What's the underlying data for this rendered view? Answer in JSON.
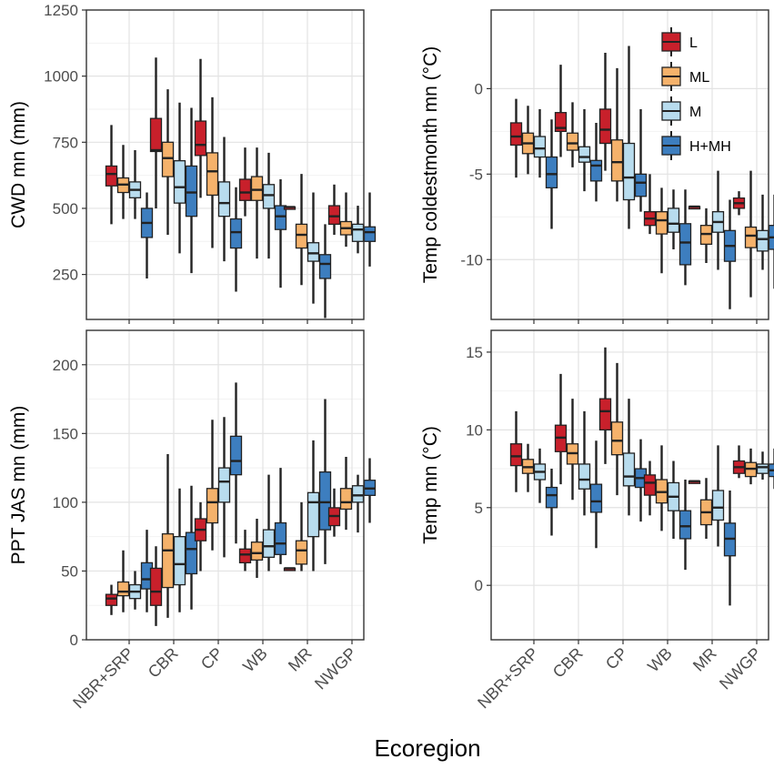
{
  "chart_data": {
    "type": "boxplot",
    "xlabel": "Ecoregion",
    "categories": [
      "NBR+SRP",
      "CBR",
      "CP",
      "WB",
      "MR",
      "NWGP"
    ],
    "groups": [
      "L",
      "ML",
      "M",
      "H+MH"
    ],
    "legend": [
      {
        "label": "L",
        "color": "#c8202b"
      },
      {
        "label": "ML",
        "color": "#f5b26b"
      },
      {
        "label": "M",
        "color": "#b8dcee"
      },
      {
        "label": "H+MH",
        "color": "#3d7ebf"
      }
    ],
    "panels": [
      {
        "ylabel": "CWD  mn (mm)",
        "ylim": [
          80,
          1250
        ],
        "yticks": [
          250,
          500,
          750,
          1000,
          1250
        ],
        "ytick_labels": [
          "250",
          "500",
          "750",
          "1000",
          "1250"
        ],
        "boxes": [
          [
            [
              440,
              585,
              630,
              660,
              815
            ],
            [
              460,
              560,
              590,
              615,
              740
            ],
            [
              460,
              540,
              570,
              600,
              720
            ],
            [
              235,
              390,
              445,
              500,
              560
            ]
          ],
          [
            [
              500,
              715,
              720,
              840,
              1070
            ],
            [
              400,
              620,
              690,
              750,
              950
            ],
            [
              330,
              520,
              580,
              680,
              900
            ],
            [
              255,
              470,
              560,
              660,
              880
            ]
          ],
          [
            [
              540,
              700,
              740,
              830,
              1065
            ],
            [
              350,
              550,
              640,
              710,
              920
            ],
            [
              300,
              470,
              520,
              600,
              770
            ],
            [
              185,
              350,
              410,
              460,
              580
            ]
          ],
          [
            [
              470,
              530,
              560,
              610,
              730
            ],
            [
              310,
              530,
              570,
              620,
              730
            ],
            [
              310,
              500,
              550,
              590,
              710
            ],
            [
              200,
              420,
              470,
              510,
              610
            ]
          ],
          [
            [
              505,
              505,
              505,
              505,
              505
            ],
            [
              210,
              350,
              400,
              440,
              630
            ],
            [
              140,
              300,
              330,
              370,
              560
            ],
            [
              85,
              235,
              290,
              325,
              440
            ]
          ],
          [
            [
              400,
              440,
              470,
              510,
              590
            ],
            [
              355,
              400,
              425,
              450,
              560
            ],
            [
              330,
              375,
              420,
              440,
              510
            ],
            [
              280,
              375,
              410,
              430,
              560
            ]
          ]
        ]
      },
      {
        "ylabel": "Temp  coldestmonth  mn (°C)",
        "ylim": [
          -13.5,
          4.6
        ],
        "yticks": [
          -10,
          -5,
          0
        ],
        "ytick_labels": [
          "-10",
          "-5",
          "0"
        ],
        "boxes": [
          [
            [
              -5.2,
              -3.3,
              -2.8,
              -2.0,
              -0.6
            ],
            [
              -5.0,
              -3.8,
              -3.2,
              -2.6,
              -1.0
            ],
            [
              -5.2,
              -4.0,
              -3.5,
              -2.8,
              -1.2
            ],
            [
              -8.2,
              -5.8,
              -5.0,
              -4.0,
              -1.8
            ]
          ],
          [
            [
              -4.0,
              -2.5,
              -2.3,
              -1.4,
              1.4
            ],
            [
              -4.6,
              -3.6,
              -3.2,
              -2.6,
              -0.8
            ],
            [
              -6.0,
              -4.3,
              -4.0,
              -3.4,
              -1.2
            ],
            [
              -6.6,
              -5.4,
              -4.5,
              -4.2,
              -2.0
            ]
          ],
          [
            [
              -4.8,
              -3.2,
              -2.4,
              -1.2,
              2.1
            ],
            [
              -6.6,
              -5.4,
              -4.3,
              -3.0,
              1.2
            ],
            [
              -8.2,
              -6.5,
              -5.2,
              -3.2,
              2.5
            ],
            [
              -7.2,
              -6.3,
              -5.5,
              -5.0,
              -1.2
            ]
          ],
          [
            [
              -8.5,
              -8.0,
              -7.6,
              -7.2,
              -5.0
            ],
            [
              -10.8,
              -8.5,
              -7.7,
              -7.2,
              -5.8
            ],
            [
              -9.4,
              -8.4,
              -7.9,
              -7.0,
              -5.9
            ],
            [
              -11.5,
              -10.3,
              -9.0,
              -7.9,
              -5.9
            ]
          ],
          [
            [
              -6.9,
              -6.9,
              -6.9,
              -6.9,
              -6.9
            ],
            [
              -10.2,
              -9.1,
              -8.5,
              -8.0,
              -7.0
            ],
            [
              -10.6,
              -8.4,
              -7.8,
              -7.2,
              -4.8
            ],
            [
              -12.9,
              -10.1,
              -9.2,
              -8.3,
              -6.5
            ]
          ],
          [
            [
              -7.4,
              -7.0,
              -6.7,
              -6.4,
              -6.0
            ],
            [
              -12.2,
              -9.3,
              -8.6,
              -8.1,
              -4.8
            ],
            [
              -10.6,
              -9.5,
              -8.8,
              -8.3,
              -6.2
            ],
            [
              -11.7,
              -9.4,
              -8.7,
              -8.0,
              -6.2
            ]
          ]
        ]
      },
      {
        "ylabel": "PPT  JAS  mn (mm)",
        "ylim": [
          0,
          225
        ],
        "yticks": [
          0,
          50,
          100,
          150,
          200
        ],
        "ytick_labels": [
          "0",
          "50",
          "100",
          "150",
          "200"
        ],
        "boxes": [
          [
            [
              18,
              25,
              30,
              33,
              40
            ],
            [
              20,
              32,
              35,
              42,
              65
            ],
            [
              22,
              30,
              35,
              40,
              50
            ],
            [
              20,
              37,
              44,
              56,
              80
            ]
          ],
          [
            [
              10,
              25,
              35,
              52,
              68
            ],
            [
              16,
              38,
              65,
              77,
              135
            ],
            [
              20,
              40,
              55,
              75,
              110
            ],
            [
              22,
              48,
              66,
              78,
              112
            ]
          ],
          [
            [
              50,
              72,
              80,
              88,
              100
            ],
            [
              65,
              85,
              100,
              110,
              160
            ],
            [
              60,
              100,
              115,
              125,
              162
            ],
            [
              70,
              120,
              130,
              148,
              187
            ]
          ],
          [
            [
              50,
              56,
              62,
              66,
              80
            ],
            [
              45,
              58,
              63,
              71,
              88
            ],
            [
              50,
              60,
              68,
              80,
              120
            ],
            [
              55,
              62,
              70,
              85,
              125
            ]
          ],
          [
            [
              52,
              52,
              52,
              52,
              52
            ],
            [
              50,
              55,
              65,
              72,
              100
            ],
            [
              50,
              75,
              100,
              107,
              145
            ],
            [
              55,
              80,
              100,
              122,
              175
            ]
          ],
          [
            [
              75,
              83,
              90,
              96,
              110
            ],
            [
              80,
              95,
              100,
              110,
              133
            ],
            [
              78,
              100,
              105,
              112,
              120
            ],
            [
              85,
              105,
              110,
              116,
              132
            ]
          ]
        ]
      },
      {
        "ylabel": "Temp  mn (°C)",
        "ylim": [
          -3.5,
          16.4
        ],
        "yticks": [
          0,
          5,
          10,
          15
        ],
        "ytick_labels": [
          "0",
          "5",
          "10",
          "15"
        ],
        "boxes": [
          [
            [
              6.0,
              7.7,
              8.3,
              9.1,
              11.2
            ],
            [
              6.0,
              7.2,
              7.6,
              8.1,
              9.1
            ],
            [
              5.3,
              6.8,
              7.3,
              7.8,
              8.8
            ],
            [
              3.2,
              5.0,
              5.8,
              6.3,
              7.5
            ]
          ],
          [
            [
              6.5,
              8.6,
              9.5,
              10.3,
              13.6
            ],
            [
              5.5,
              7.8,
              8.5,
              9.1,
              12.0
            ],
            [
              4.5,
              6.2,
              6.8,
              7.8,
              11.2
            ],
            [
              2.4,
              4.7,
              5.4,
              6.5,
              9.3
            ]
          ],
          [
            [
              7.8,
              10.0,
              11.2,
              12.0,
              15.3
            ],
            [
              5.8,
              8.4,
              9.3,
              10.5,
              14.3
            ],
            [
              4.5,
              6.4,
              7.0,
              8.5,
              12.0
            ],
            [
              4.1,
              6.3,
              6.9,
              7.5,
              9.4
            ]
          ],
          [
            [
              4.5,
              5.8,
              6.6,
              7.1,
              8.0
            ],
            [
              3.5,
              5.3,
              6.0,
              6.8,
              9.0
            ],
            [
              3.0,
              4.8,
              5.7,
              6.6,
              8.0
            ],
            [
              1.0,
              3.0,
              3.8,
              4.8,
              6.8
            ]
          ],
          [
            [
              6.7,
              6.7,
              6.7,
              6.7,
              6.7
            ],
            [
              3.0,
              3.9,
              4.7,
              5.5,
              6.9
            ],
            [
              2.5,
              4.2,
              5.0,
              6.1,
              9.0
            ],
            [
              -1.3,
              1.9,
              3.0,
              4.0,
              6.1
            ]
          ],
          [
            [
              6.9,
              7.2,
              7.6,
              8.0,
              9.0
            ],
            [
              6.5,
              7.0,
              7.5,
              7.9,
              8.8
            ],
            [
              6.8,
              7.2,
              7.6,
              7.8,
              8.6
            ],
            [
              6.2,
              7.0,
              7.4,
              7.8,
              8.8
            ]
          ]
        ]
      }
    ]
  }
}
